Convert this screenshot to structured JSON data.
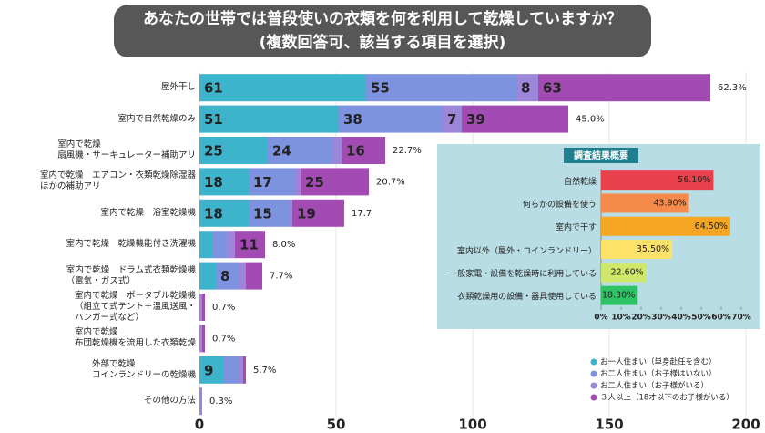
{
  "chart_data": [
    {
      "type": "stacked-bar-horizontal",
      "title": [
        "あなたの世帯では普段使いの衣類を何を利用して乾燥していますか？",
        "(複数回答可、該当する項目を選択)"
      ],
      "categories": [
        "屋外干し",
        "室内で自然乾燥のみ",
        "室内で乾燥\n扇風機・サーキュレーター補助アリ",
        "室内で乾燥　エアコン・衣類乾燥除湿器\nほかの補助アリ",
        "室内で乾燥　浴室乾燥機",
        "室内で乾燥　乾燥機能付き洗濯機",
        "室内で乾燥　ドラム式衣類乾燥機\n（電気・ガス式）",
        "室内で乾燥　ポータブル乾燥機\n（組立て式テント＋温風送風・\nハンガー式など）",
        "室内で乾燥\n布団乾燥機を流用した衣類乾燥",
        "外部で乾燥\nコインランドリーの乾燥機",
        "その他の方法"
      ],
      "series": [
        {
          "name": "お一人住まい（単身赴任を含む）",
          "color": "#3db4cc",
          "values": [
            61,
            51,
            25,
            18,
            18,
            5,
            6,
            0,
            0,
            9,
            0
          ],
          "value_labels": [
            "61",
            "51",
            "25",
            "18",
            "18",
            null,
            null,
            null,
            null,
            "9",
            null
          ]
        },
        {
          "name": "お二人住まい（お子様はいない）",
          "color": "#7d93df",
          "values": [
            55,
            38,
            24,
            17,
            15,
            5,
            8,
            0,
            0,
            5,
            0
          ],
          "value_labels": [
            "55",
            "38",
            "24",
            "17",
            "15",
            null,
            "8",
            null,
            null,
            null,
            null
          ]
        },
        {
          "name": "お二人住まい（お子様がいる）",
          "color": "#9c86d9",
          "values": [
            8,
            7,
            3,
            2,
            1,
            3,
            3,
            1,
            1,
            2,
            1
          ],
          "value_labels": [
            "8",
            "7",
            null,
            null,
            null,
            null,
            null,
            null,
            null,
            null,
            null
          ]
        },
        {
          "name": "３人以上（18才以下のお子様がいる）",
          "color": "#a24bb3",
          "values": [
            63,
            39,
            16,
            25,
            19,
            11,
            6,
            1,
            1,
            1,
            0
          ],
          "value_labels": [
            "63",
            "39",
            "16",
            "25",
            "19",
            "11",
            null,
            null,
            null,
            null,
            null
          ]
        }
      ],
      "totals": {
        "values": [
          62.3,
          45.0,
          22.7,
          20.7,
          17.7,
          8.0,
          7.7,
          0.7,
          0.7,
          5.7,
          0.3
        ],
        "value_labels": [
          "62.3%",
          "45.0%",
          "22.7%",
          "20.7%",
          "17.7",
          "8.0%",
          "7.7%",
          "0.7%",
          "0.7%",
          "5.7%",
          "0.3%"
        ]
      },
      "xlim": [
        0,
        200
      ],
      "xticks": [
        0,
        50,
        100,
        150,
        200
      ],
      "grid": true,
      "legend": "bottom-right"
    },
    {
      "type": "bar-horizontal",
      "title": "調査結果概要",
      "categories": [
        "自然乾燥",
        "何らかの設備を使う",
        "室内で干す",
        "室内以外（屋外・コインランドリー）",
        "一般家電・設備を乾燥時に利用している",
        "衣類乾燥用の設備・器具使用している"
      ],
      "values": [
        56.1,
        43.9,
        64.5,
        35.5,
        22.6,
        18.3
      ],
      "value_labels": [
        "56.10%",
        "43.90%",
        "64.50%",
        "35.50%",
        "22.60%",
        "18.30%"
      ],
      "colors": [
        "#e8414b",
        "#f58a4a",
        "#f5a623",
        "#fde26a",
        "#cfe86a",
        "#2ec466"
      ],
      "xlim": [
        0,
        70
      ],
      "xticks": [
        {
          "value": 0,
          "label": "0%"
        },
        {
          "value": 10,
          "label": "10%"
        },
        {
          "value": 20,
          "label": "20%"
        },
        {
          "value": 30,
          "label": "30%"
        },
        {
          "value": 40,
          "label": "40%"
        },
        {
          "value": 50,
          "label": "50%"
        },
        {
          "value": 60,
          "label": "60%"
        },
        {
          "value": 70,
          "label": "70%"
        }
      ]
    }
  ]
}
